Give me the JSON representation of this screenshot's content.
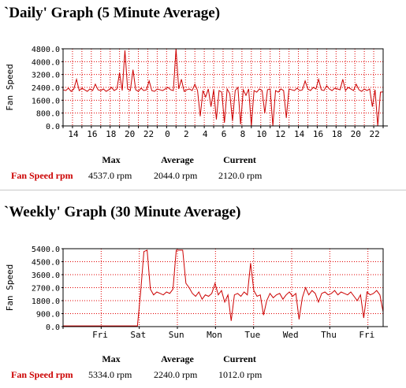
{
  "daily": {
    "title": "`Daily' Graph (5 Minute Average)",
    "stats": {
      "headers": [
        "Max",
        "Average",
        "Current"
      ],
      "row_label": "Fan Speed rpm",
      "values": [
        "4537.0 rpm",
        "2044.0 rpm",
        "2120.0 rpm"
      ]
    }
  },
  "weekly": {
    "title": "`Weekly' Graph (30 Minute Average)",
    "stats": {
      "headers": [
        "Max",
        "Average",
        "Current"
      ],
      "row_label": "Fan Speed rpm",
      "values": [
        "5334.0 rpm",
        "2240.0 rpm",
        "1012.0 rpm"
      ]
    }
  },
  "colors": {
    "line": "#cc0000",
    "grid": "#e10000",
    "axis": "#000000",
    "legend_label": "#cc0000"
  },
  "chart_data": [
    {
      "type": "line",
      "title": "`Daily' Graph (5 Minute Average)",
      "ylabel": "Fan Speed",
      "ylim": [
        0,
        4800
      ],
      "yticks": [
        "4800.0",
        "4000.0",
        "3200.0",
        "2400.0",
        "1600.0",
        "800.0",
        "0.0"
      ],
      "xtick_labels": [
        "14",
        "16",
        "18",
        "20",
        "22",
        "0",
        "2",
        "4",
        "6",
        "8",
        "10",
        "12",
        "14",
        "16",
        "18",
        "20",
        "22"
      ],
      "grid": true,
      "series": [
        {
          "values": [
            2250,
            2200,
            2350,
            2150,
            2300,
            2900,
            2200,
            2350,
            2250,
            2150,
            2300,
            2200,
            2600,
            2250,
            2200,
            2300,
            2150,
            2250,
            2400,
            2200,
            2300,
            3300,
            2200,
            4700,
            2300,
            2200,
            3500,
            2250,
            2150,
            2350,
            2200,
            2250,
            2800,
            2200,
            2150,
            2300,
            2250,
            2200,
            2300,
            2400,
            2250,
            2200,
            4800,
            2300,
            2900,
            2150,
            2250,
            2300,
            2200,
            2600,
            2200,
            600,
            2200,
            1800,
            2300,
            1200,
            2250,
            400,
            2200,
            2100,
            200,
            2300,
            2000,
            300,
            2200,
            2400,
            100,
            2250,
            1900,
            2300,
            0,
            2200,
            2100,
            2300,
            2200,
            800,
            2250,
            2300,
            0,
            2200,
            2100,
            2300,
            2200,
            500,
            2300,
            2250,
            2200,
            2350,
            2200,
            2250,
            2800,
            2300,
            2200,
            2400,
            2300,
            2900,
            2250,
            2200,
            2500,
            2300,
            2200,
            2350,
            2300,
            2250,
            2900,
            2200,
            2400,
            2300,
            2200,
            2600,
            2250,
            2150,
            2300,
            2200,
            2300,
            1200,
            2250,
            0,
            2100,
            2120
          ],
          "xlim_labels_note": "5-minute samples over ~33 hours"
        }
      ],
      "legend": {
        "headers": [
          "Max",
          "Average",
          "Current"
        ],
        "label": "Fan Speed rpm",
        "values": [
          "4537.0 rpm",
          "2044.0 rpm",
          "2120.0 rpm"
        ]
      }
    },
    {
      "type": "line",
      "title": "`Weekly' Graph (30 Minute Average)",
      "ylabel": "Fan Speed",
      "ylim": [
        0,
        5400
      ],
      "yticks": [
        "5400.0",
        "4500.0",
        "3600.0",
        "2700.0",
        "1800.0",
        "900.0",
        "0.0"
      ],
      "xtick_labels": [
        "Fri",
        "Sat",
        "Sun",
        "Mon",
        "Tue",
        "Wed",
        "Thu",
        "Fri"
      ],
      "grid": true,
      "series": [
        {
          "values": [
            50,
            50,
            50,
            50,
            50,
            50,
            50,
            50,
            50,
            50,
            50,
            50,
            50,
            50,
            50,
            50,
            50,
            50,
            50,
            50,
            50,
            50,
            50,
            50,
            2400,
            5200,
            5300,
            2600,
            2200,
            2400,
            2300,
            2200,
            2400,
            2300,
            2600,
            5300,
            5300,
            5300,
            3000,
            2700,
            2300,
            2100,
            2400,
            1900,
            2200,
            2100,
            2300,
            3000,
            2200,
            2500,
            1700,
            2200,
            400,
            2200,
            2300,
            2100,
            2400,
            2200,
            4400,
            2500,
            2100,
            2200,
            800,
            1800,
            2300,
            2000,
            2200,
            2300,
            1900,
            2200,
            2400,
            2100,
            2300,
            500,
            2000,
            2700,
            2200,
            2500,
            2300,
            1700,
            2300,
            2400,
            2200,
            2300,
            2500,
            2200,
            2400,
            2300,
            2200,
            2400,
            2100,
            1800,
            2200,
            600,
            2400,
            2200,
            2300,
            2500,
            2200,
            1012
          ],
          "xlim_labels_note": "30-minute samples over ~8 days"
        }
      ],
      "legend": {
        "headers": [
          "Max",
          "Average",
          "Current"
        ],
        "label": "Fan Speed rpm",
        "values": [
          "5334.0 rpm",
          "2240.0 rpm",
          "1012.0 rpm"
        ]
      }
    }
  ]
}
